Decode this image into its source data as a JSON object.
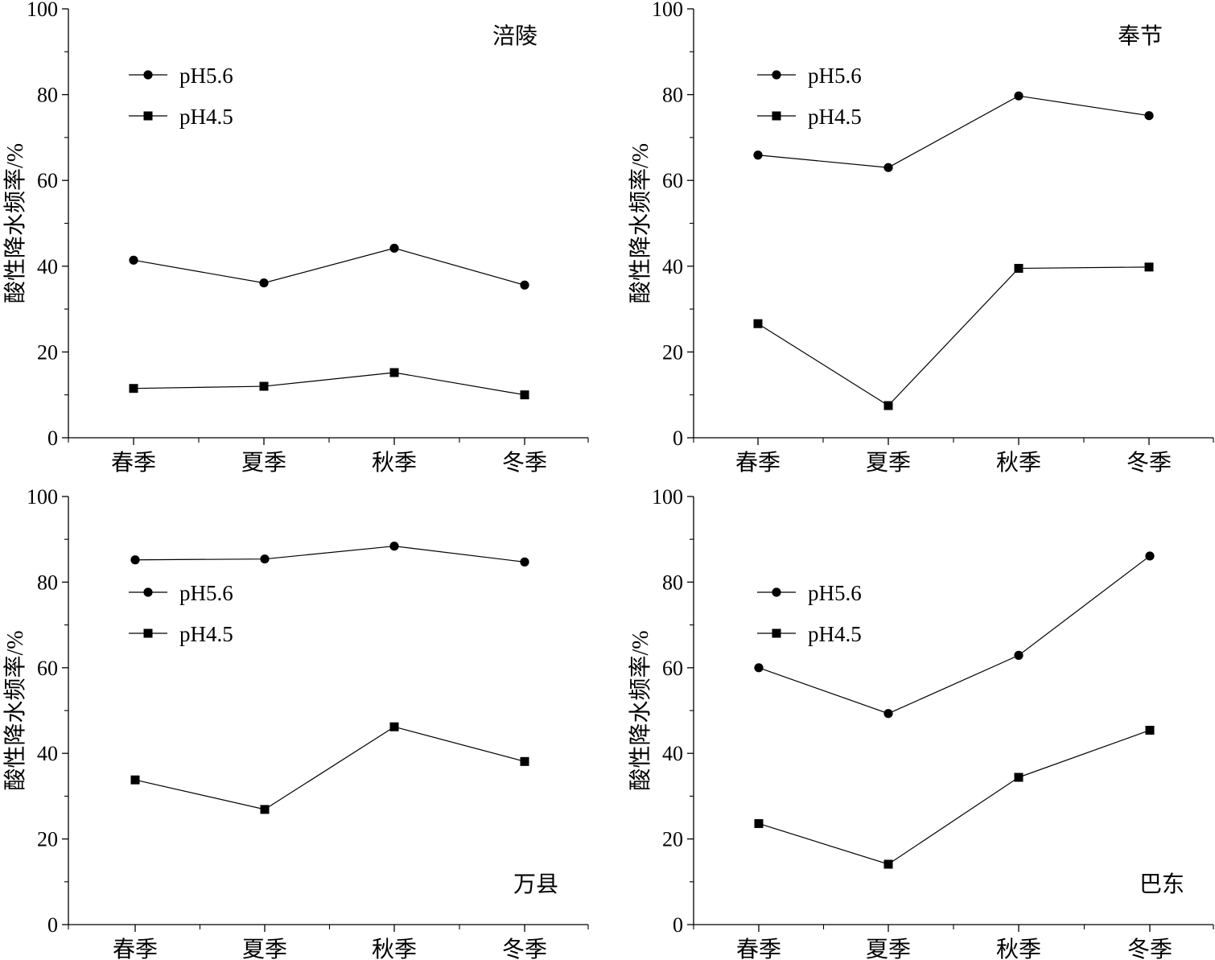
{
  "figure": {
    "colors": {
      "line": "#000000",
      "background": "#ffffff"
    },
    "marker_icons": {
      "pH5.6": "circle-marker",
      "pH4.5": "square-marker"
    }
  },
  "chart_data": [
    {
      "type": "line",
      "title": "涪陵",
      "xlabel": "",
      "ylabel": "酸性降水频率/%",
      "categories": [
        "春季",
        "夏季",
        "秋季",
        "冬季"
      ],
      "ylim": [
        0,
        100
      ],
      "yticks": [
        0,
        20,
        40,
        60,
        80,
        100
      ],
      "legend_position": "upper-left",
      "series": [
        {
          "name": "pH5.6",
          "marker": "circle",
          "values": [
            41.4,
            36.1,
            44.2,
            35.6
          ]
        },
        {
          "name": "pH4.5",
          "marker": "square",
          "values": [
            11.5,
            12.0,
            15.2,
            10.0
          ]
        }
      ]
    },
    {
      "type": "line",
      "title": "奉节",
      "xlabel": "",
      "ylabel": "酸性降水频率/%",
      "categories": [
        "春季",
        "夏季",
        "秋季",
        "冬季"
      ],
      "ylim": [
        0,
        100
      ],
      "yticks": [
        0,
        20,
        40,
        60,
        80,
        100
      ],
      "legend_position": "upper-left",
      "series": [
        {
          "name": "pH5.6",
          "marker": "circle",
          "values": [
            65.9,
            63.0,
            79.7,
            75.1
          ]
        },
        {
          "name": "pH4.5",
          "marker": "square",
          "values": [
            26.6,
            7.5,
            39.5,
            39.8
          ]
        }
      ]
    },
    {
      "type": "line",
      "title": "万县",
      "xlabel": "",
      "ylabel": "酸性降水频率/%",
      "categories": [
        "春季",
        "夏季",
        "秋季",
        "冬季"
      ],
      "ylim": [
        0,
        100
      ],
      "yticks": [
        0,
        20,
        40,
        60,
        80,
        100
      ],
      "legend_position": "upper-left",
      "series": [
        {
          "name": "pH5.6",
          "marker": "circle",
          "values": [
            85.2,
            85.4,
            88.4,
            84.7
          ]
        },
        {
          "name": "pH4.5",
          "marker": "square",
          "values": [
            33.8,
            26.9,
            46.2,
            38.1
          ]
        }
      ]
    },
    {
      "type": "line",
      "title": "巴东",
      "xlabel": "",
      "ylabel": "酸性降水频率/%",
      "categories": [
        "春季",
        "夏季",
        "秋季",
        "冬季"
      ],
      "ylim": [
        0,
        100
      ],
      "yticks": [
        0,
        20,
        40,
        60,
        80,
        100
      ],
      "legend_position": "upper-left",
      "series": [
        {
          "name": "pH5.6",
          "marker": "circle",
          "values": [
            60.0,
            49.3,
            62.9,
            86.1
          ]
        },
        {
          "name": "pH4.5",
          "marker": "square",
          "values": [
            23.6,
            14.1,
            34.4,
            45.4
          ]
        }
      ]
    }
  ]
}
